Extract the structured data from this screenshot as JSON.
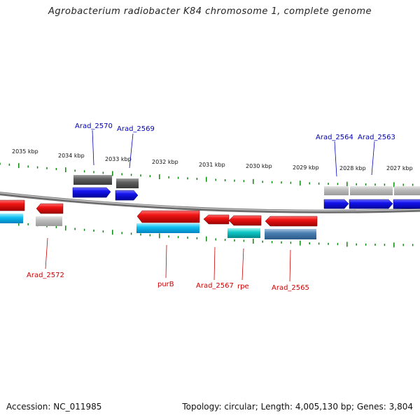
{
  "title": "Agrobacterium radiobacter K84 chromosome 1, complete genome",
  "footer": {
    "accession": "Accession: NC_011985",
    "stats": "Topology: circular; Length: 4,005,130 bp; Genes: 3,804"
  },
  "colors": {
    "forward_gene": "#1010e0",
    "reverse_gene": "#e01010",
    "forward_label": "#0000bb",
    "reverse_label": "#cc0000",
    "tick": "#0a8a0a",
    "backbone": "#808080"
  },
  "ruler_labels": [
    "2035 kbp",
    "2034 kbp",
    "2033 kbp",
    "2032 kbp",
    "2031 kbp",
    "2030 kbp",
    "2029 kbp",
    "2028 kbp",
    "2027 kbp"
  ],
  "genes_forward": [
    {
      "label": ""
    },
    {
      "label": "Arad_2570"
    },
    {
      "label": "Arad_2569"
    },
    {
      "label": "Arad_2564"
    },
    {
      "label": "Arad_2563"
    },
    {
      "label": ""
    }
  ],
  "genes_reverse": [
    {
      "label": ""
    },
    {
      "label": "Arad_2572"
    },
    {
      "label": "purB"
    },
    {
      "label": "Arad_2567"
    },
    {
      "label": "rpe"
    },
    {
      "label": "Arad_2565"
    }
  ]
}
